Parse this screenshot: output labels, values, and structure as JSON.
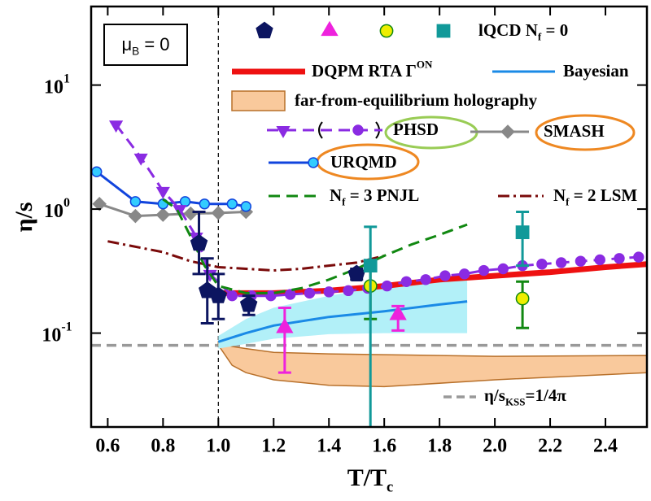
{
  "chart_data": {
    "type": "line",
    "log_y": true,
    "xlim": [
      0.54,
      2.55
    ],
    "ylim": [
      0.0175,
      43
    ],
    "xticks": [
      0.6,
      0.8,
      {
        "value": 1,
        "label": "1.0"
      },
      1.2,
      1.4,
      1.6,
      1.8,
      {
        "value": 2,
        "label": "2.0"
      },
      2.2,
      2.4
    ],
    "yticks": [
      {
        "value": 0.1,
        "label": "10",
        "sup": "-1"
      },
      {
        "value": 1,
        "label": "10",
        "sup": "0"
      },
      {
        "value": 10,
        "label": "10",
        "sup": "1"
      }
    ],
    "x_label": {
      "text": "T/T",
      "sub": "c"
    },
    "y_label": "η/s",
    "vline": 1,
    "hline": {
      "value": 0.0796,
      "text": "η/s",
      "sub": "KSS",
      "rest": "=1/4π",
      "color": "#999999"
    },
    "mu_label": {
      "text": "μ",
      "sub": "B",
      "rest": " = 0"
    },
    "lqcd_label": {
      "text": "lQCD N",
      "sub": "f",
      "rest": " = 0"
    },
    "series": [
      {
        "type": "scatter",
        "marker": "pentagon",
        "color": "#0c1560",
        "x": [
          0.93,
          0.96,
          1.0,
          1.11,
          1.5
        ],
        "values": [
          0.53,
          0.22,
          0.2,
          0.17,
          0.3
        ],
        "lower": [
          0.3,
          0.12,
          0.13,
          0.14,
          0.27
        ],
        "upper": [
          0.95,
          0.4,
          0.3,
          0.2,
          0.33
        ]
      },
      {
        "type": "scatter",
        "marker": "triangle",
        "color": "#ee22dd",
        "x": [
          1.24,
          1.65
        ],
        "values": [
          0.11,
          0.14
        ],
        "lower": [
          0.048,
          0.105
        ],
        "upper": [
          0.16,
          0.165
        ]
      },
      {
        "type": "scatter",
        "marker": "circle",
        "color": "#eeee00",
        "edge": "#118811",
        "x": [
          1.55,
          2.1
        ],
        "values": [
          0.24,
          0.19
        ],
        "lower": [
          0.13,
          0.11
        ],
        "upper": [
          0.36,
          0.26
        ]
      },
      {
        "type": "scatter",
        "marker": "square",
        "color": "#119999",
        "x": [
          1.55,
          2.1
        ],
        "values": [
          0.35,
          0.65
        ],
        "lower": [
          0.017,
          0.35
        ],
        "upper": [
          0.72,
          0.95
        ]
      },
      {
        "type": "band",
        "name": "far-from-equilibrium  holography",
        "color": "#f9c99c",
        "edge": "#b8702a",
        "x": [
          1.0,
          1.05,
          1.1,
          1.2,
          1.4,
          1.6,
          2.0,
          2.55
        ],
        "lower": [
          0.08,
          0.055,
          0.048,
          0.042,
          0.038,
          0.037,
          0.042,
          0.048
        ],
        "upper": [
          0.085,
          0.078,
          0.075,
          0.07,
          0.068,
          0.067,
          0.065,
          0.066
        ]
      },
      {
        "type": "line",
        "name": "Bayesian",
        "color": "#1a8ae6",
        "band_color": "#b2f0f8",
        "x": [
          1.0,
          1.1,
          1.2,
          1.4,
          1.6,
          1.8,
          1.9
        ],
        "values": [
          0.085,
          0.1,
          0.115,
          0.135,
          0.15,
          0.17,
          0.18
        ],
        "lower": [
          0.075,
          0.082,
          0.09,
          0.098,
          0.1,
          0.1,
          0.1
        ],
        "upper": [
          0.095,
          0.13,
          0.16,
          0.2,
          0.24,
          0.27,
          0.28
        ]
      },
      {
        "type": "line",
        "name": {
          "text": "DQPM RTA Γ",
          "sup": "ON"
        },
        "color": "#ee1111",
        "width": 7,
        "x": [
          1.0,
          1.2,
          1.4,
          1.6,
          1.8,
          2.0,
          2.2,
          2.4,
          2.55
        ],
        "values": [
          0.21,
          0.21,
          0.22,
          0.24,
          0.27,
          0.29,
          0.31,
          0.34,
          0.36
        ]
      },
      {
        "type": "line",
        "name": {
          "text": "N",
          "sub": "f",
          "rest": " = 2 LSM"
        },
        "color": "#7a0a0a",
        "dash": "dashdot",
        "x": [
          0.6,
          0.8,
          0.9,
          1.0,
          1.1,
          1.2,
          1.3,
          1.4,
          1.5,
          1.6
        ],
        "values": [
          0.55,
          0.45,
          0.38,
          0.34,
          0.33,
          0.32,
          0.33,
          0.35,
          0.37,
          0.42
        ]
      },
      {
        "type": "line",
        "name": "SMASH",
        "color": "#888888",
        "marker": "diamond",
        "x": [
          0.57,
          0.7,
          0.8,
          0.9,
          1.0,
          1.1
        ],
        "values": [
          1.1,
          0.88,
          0.9,
          0.92,
          0.93,
          0.95
        ]
      },
      {
        "type": "line",
        "name": "URQMD",
        "color": "#1144dd",
        "marker": "circle",
        "marker_fill": "#33ccff",
        "x": [
          0.56,
          0.7,
          0.8,
          0.88,
          0.95,
          1.05,
          1.1
        ],
        "values": [
          2.0,
          1.15,
          1.1,
          1.15,
          1.1,
          1.1,
          1.05
        ]
      },
      {
        "type": "line",
        "name": "PHSD",
        "color": "#8a2be2",
        "dash": "dash",
        "markers": [
          "triangle-down",
          "triangle-down",
          "triangle-down",
          "triangle-down",
          "triangle-down",
          "triangle-down",
          "circle",
          "circle",
          "circle",
          "circle",
          "circle",
          "circle",
          "circle",
          "circle",
          "circle",
          "circle",
          "circle",
          "circle",
          "circle",
          "circle",
          "circle",
          "circle",
          "circle",
          "circle",
          "circle",
          "circle",
          "circle",
          "circle"
        ],
        "x": [
          0.63,
          0.72,
          0.8,
          0.86,
          0.92,
          0.97,
          1.05,
          1.12,
          1.19,
          1.26,
          1.33,
          1.4,
          1.47,
          1.54,
          1.61,
          1.68,
          1.75,
          1.82,
          1.89,
          1.96,
          2.03,
          2.1,
          2.17,
          2.24,
          2.31,
          2.38,
          2.45,
          2.52
        ],
        "values": [
          4.8,
          2.6,
          1.4,
          1.0,
          0.6,
          0.3,
          0.2,
          0.2,
          0.2,
          0.205,
          0.21,
          0.215,
          0.22,
          0.23,
          0.24,
          0.26,
          0.27,
          0.29,
          0.3,
          0.32,
          0.33,
          0.35,
          0.36,
          0.37,
          0.38,
          0.39,
          0.4,
          0.41
        ]
      },
      {
        "type": "line",
        "name": {
          "text": "N",
          "sub": "f",
          "rest": " = 3 PNJL"
        },
        "color": "#118811",
        "dash": "dash",
        "x": [
          0.8,
          0.85,
          0.9,
          0.95,
          1.0,
          1.1,
          1.2,
          1.3,
          1.4,
          1.5,
          1.6,
          1.7,
          1.8,
          1.9
        ],
        "values": [
          1.2,
          1.0,
          0.6,
          0.35,
          0.24,
          0.21,
          0.21,
          0.23,
          0.27,
          0.33,
          0.42,
          0.52,
          0.62,
          0.75
        ]
      }
    ]
  }
}
